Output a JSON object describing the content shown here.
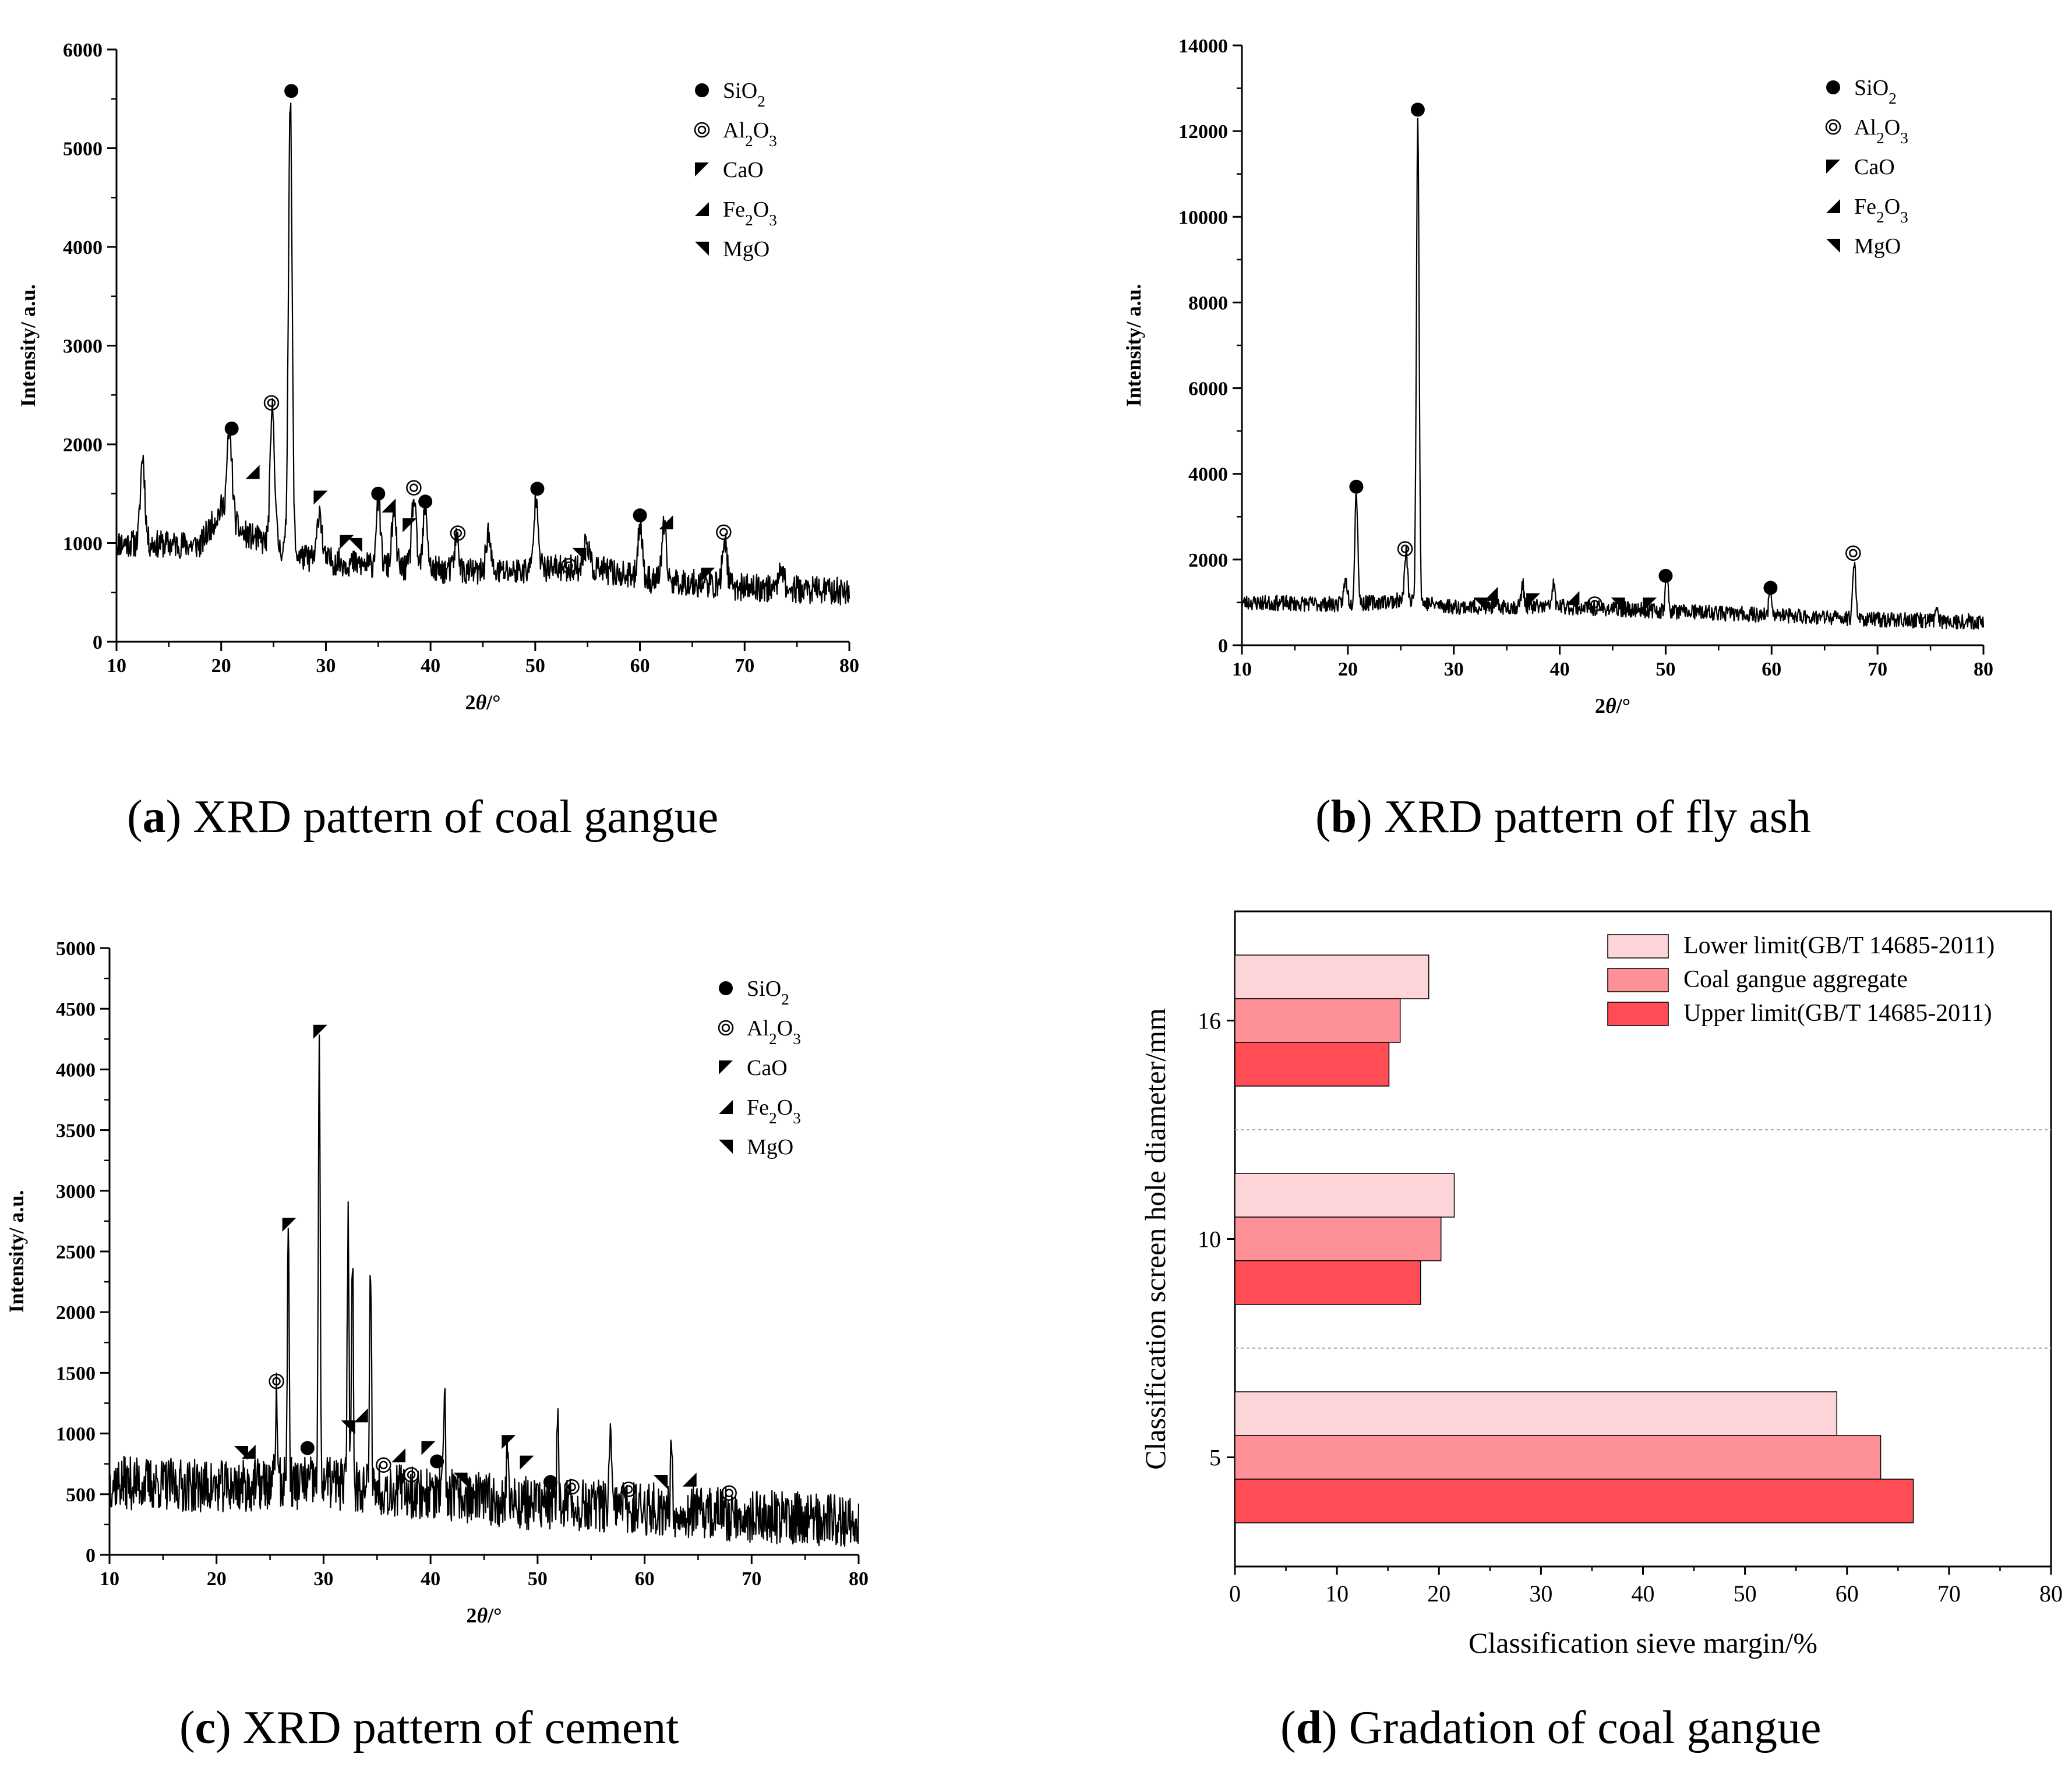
{
  "figure": {
    "captions": [
      {
        "letter": "a",
        "text": "XRD pattern of coal gangue"
      },
      {
        "letter": "b",
        "text": "XRD pattern of fly ash"
      },
      {
        "letter": "c",
        "text": "XRD pattern of cement"
      },
      {
        "letter": "d",
        "text": "Gradation of coal gangue"
      }
    ]
  },
  "chart_data": [
    {
      "type": "line",
      "panel": "a",
      "xlabel": "2θ/°",
      "ylabel": "Intensity/ a.u.",
      "xlim": [
        10,
        80
      ],
      "ylim": [
        0,
        6000
      ],
      "xticks": [
        10,
        20,
        30,
        40,
        50,
        60,
        70,
        80
      ],
      "yticks": [
        0,
        1000,
        2000,
        3000,
        4000,
        5000,
        6000
      ],
      "grid": false,
      "legend_position": "top-right",
      "legend": [
        "SiO2",
        "Al2O3",
        "CaO",
        "Fe2O3",
        "MgO"
      ],
      "baseline": [
        [
          10,
          1000
        ],
        [
          18,
          980
        ],
        [
          20,
          1350
        ],
        [
          22,
          1100
        ],
        [
          28,
          850
        ],
        [
          35,
          760
        ],
        [
          45,
          700
        ],
        [
          55,
          760
        ],
        [
          60,
          640
        ],
        [
          70,
          550
        ],
        [
          80,
          510
        ]
      ],
      "peaks": [
        {
          "x": 12.5,
          "y": 1880,
          "w": 0.3
        },
        {
          "x": 20.8,
          "y": 2100,
          "w": 0.35
        },
        {
          "x": 24.9,
          "y": 2350,
          "w": 0.3
        },
        {
          "x": 26.6,
          "y": 5500,
          "w": 0.25
        },
        {
          "x": 29.4,
          "y": 1350,
          "w": 0.3
        },
        {
          "x": 35.0,
          "y": 1450,
          "w": 0.3
        },
        {
          "x": 36.5,
          "y": 1300,
          "w": 0.3
        },
        {
          "x": 38.4,
          "y": 1450,
          "w": 0.3
        },
        {
          "x": 39.5,
          "y": 1350,
          "w": 0.3
        },
        {
          "x": 42.5,
          "y": 1050,
          "w": 0.3
        },
        {
          "x": 45.5,
          "y": 1100,
          "w": 0.3
        },
        {
          "x": 50.1,
          "y": 1500,
          "w": 0.3
        },
        {
          "x": 54.9,
          "y": 1050,
          "w": 0.3
        },
        {
          "x": 60.0,
          "y": 1200,
          "w": 0.3
        },
        {
          "x": 62.3,
          "y": 1150,
          "w": 0.3
        },
        {
          "x": 68.1,
          "y": 1050,
          "w": 0.3
        },
        {
          "x": 73.5,
          "y": 800,
          "w": 0.3
        }
      ],
      "noise": 140,
      "markers": [
        {
          "phase": "SiO2",
          "x": 21.0,
          "y": 2160
        },
        {
          "phase": "SiO2",
          "x": 26.7,
          "y": 5580
        },
        {
          "phase": "SiO2",
          "x": 35.0,
          "y": 1500
        },
        {
          "phase": "SiO2",
          "x": 39.5,
          "y": 1420
        },
        {
          "phase": "SiO2",
          "x": 50.2,
          "y": 1550
        },
        {
          "phase": "SiO2",
          "x": 60.0,
          "y": 1280
        },
        {
          "phase": "Al2O3",
          "x": 24.8,
          "y": 2420
        },
        {
          "phase": "Al2O3",
          "x": 38.4,
          "y": 1560
        },
        {
          "phase": "Al2O3",
          "x": 42.6,
          "y": 1100
        },
        {
          "phase": "Al2O3",
          "x": 53.2,
          "y": 770
        },
        {
          "phase": "Al2O3",
          "x": 68.0,
          "y": 1110
        },
        {
          "phase": "CaO",
          "x": 29.5,
          "y": 1460
        },
        {
          "phase": "CaO",
          "x": 32.0,
          "y": 1010
        },
        {
          "phase": "CaO",
          "x": 38.0,
          "y": 1180
        },
        {
          "phase": "CaO",
          "x": 66.5,
          "y": 680
        },
        {
          "phase": "Fe2O3",
          "x": 23.0,
          "y": 1720
        },
        {
          "phase": "Fe2O3",
          "x": 36.0,
          "y": 1380
        },
        {
          "phase": "Fe2O3",
          "x": 62.5,
          "y": 1210
        },
        {
          "phase": "MgO",
          "x": 32.8,
          "y": 980
        },
        {
          "phase": "MgO",
          "x": 54.2,
          "y": 880
        }
      ]
    },
    {
      "type": "line",
      "panel": "b",
      "xlabel": "2θ/°",
      "ylabel": "Intensity/ a.u.",
      "xlim": [
        10,
        80
      ],
      "ylim": [
        0,
        14000
      ],
      "xticks": [
        10,
        20,
        30,
        40,
        50,
        60,
        70,
        80
      ],
      "yticks": [
        0,
        2000,
        4000,
        6000,
        8000,
        10000,
        12000,
        14000
      ],
      "grid": false,
      "legend_position": "top-right",
      "legend": [
        "SiO2",
        "Al2O3",
        "CaO",
        "Fe2O3",
        "MgO"
      ],
      "baseline": [
        [
          10,
          1000
        ],
        [
          20,
          950
        ],
        [
          25,
          1050
        ],
        [
          30,
          900
        ],
        [
          40,
          900
        ],
        [
          50,
          800
        ],
        [
          60,
          700
        ],
        [
          70,
          600
        ],
        [
          80,
          550
        ]
      ],
      "peaks": [
        {
          "x": 19.8,
          "y": 1500,
          "w": 0.25
        },
        {
          "x": 20.8,
          "y": 3600,
          "w": 0.2
        },
        {
          "x": 25.5,
          "y": 2200,
          "w": 0.2
        },
        {
          "x": 26.6,
          "y": 12400,
          "w": 0.18
        },
        {
          "x": 36.5,
          "y": 1400,
          "w": 0.2
        },
        {
          "x": 39.4,
          "y": 1400,
          "w": 0.2
        },
        {
          "x": 50.1,
          "y": 1600,
          "w": 0.2
        },
        {
          "x": 59.9,
          "y": 1300,
          "w": 0.2
        },
        {
          "x": 67.8,
          "y": 2000,
          "w": 0.2
        },
        {
          "x": 75.6,
          "y": 850,
          "w": 0.2
        }
      ],
      "noise": 180,
      "markers": [
        {
          "phase": "SiO2",
          "x": 20.8,
          "y": 3700
        },
        {
          "phase": "SiO2",
          "x": 26.6,
          "y": 12500
        },
        {
          "phase": "SiO2",
          "x": 50.0,
          "y": 1620
        },
        {
          "phase": "SiO2",
          "x": 59.9,
          "y": 1340
        },
        {
          "phase": "Al2O3",
          "x": 25.4,
          "y": 2250
        },
        {
          "phase": "Al2O3",
          "x": 43.3,
          "y": 960
        },
        {
          "phase": "Al2O3",
          "x": 67.7,
          "y": 2150
        },
        {
          "phase": "CaO",
          "x": 37.5,
          "y": 1050
        },
        {
          "phase": "CaO",
          "x": 48.5,
          "y": 950
        },
        {
          "phase": "Fe2O3",
          "x": 33.5,
          "y": 1200
        },
        {
          "phase": "Fe2O3",
          "x": 41.2,
          "y": 1100
        },
        {
          "phase": "MgO",
          "x": 32.5,
          "y": 950
        },
        {
          "phase": "MgO",
          "x": 45.5,
          "y": 950
        }
      ]
    },
    {
      "type": "line",
      "panel": "c",
      "xlabel": "2θ/°",
      "ylabel": "Intensity/ a.u.",
      "xlim": [
        10,
        80
      ],
      "ylim": [
        0,
        5000
      ],
      "xticks": [
        10,
        20,
        30,
        40,
        50,
        60,
        70,
        80
      ],
      "yticks": [
        0,
        500,
        1000,
        1500,
        2000,
        2500,
        3000,
        3500,
        4000,
        4500,
        5000
      ],
      "grid": false,
      "legend_position": "top-right",
      "legend": [
        "SiO2",
        "Al2O3",
        "CaO",
        "Fe2O3",
        "MgO"
      ],
      "baseline": [
        [
          10,
          600
        ],
        [
          20,
          560
        ],
        [
          30,
          600
        ],
        [
          40,
          500
        ],
        [
          50,
          420
        ],
        [
          60,
          380
        ],
        [
          70,
          320
        ],
        [
          80,
          280
        ]
      ],
      "peaks": [
        {
          "x": 25.6,
          "y": 1300,
          "w": 0.15
        },
        {
          "x": 26.7,
          "y": 2700,
          "w": 0.12
        },
        {
          "x": 29.6,
          "y": 4200,
          "w": 0.12
        },
        {
          "x": 32.3,
          "y": 2800,
          "w": 0.12
        },
        {
          "x": 32.7,
          "y": 2500,
          "w": 0.12
        },
        {
          "x": 34.4,
          "y": 2450,
          "w": 0.12
        },
        {
          "x": 41.3,
          "y": 1300,
          "w": 0.12
        },
        {
          "x": 47.2,
          "y": 950,
          "w": 0.12
        },
        {
          "x": 51.9,
          "y": 1200,
          "w": 0.12
        },
        {
          "x": 56.8,
          "y": 1050,
          "w": 0.12
        },
        {
          "x": 62.5,
          "y": 900,
          "w": 0.12
        }
      ],
      "noise": 220,
      "markers": [
        {
          "phase": "SiO2",
          "x": 28.5,
          "y": 880
        },
        {
          "phase": "SiO2",
          "x": 40.6,
          "y": 770
        },
        {
          "phase": "SiO2",
          "x": 51.2,
          "y": 600
        },
        {
          "phase": "Al2O3",
          "x": 25.6,
          "y": 1430
        },
        {
          "phase": "Al2O3",
          "x": 35.6,
          "y": 740
        },
        {
          "phase": "Al2O3",
          "x": 38.2,
          "y": 660
        },
        {
          "phase": "Al2O3",
          "x": 53.2,
          "y": 560
        },
        {
          "phase": "Al2O3",
          "x": 58.5,
          "y": 540
        },
        {
          "phase": "Al2O3",
          "x": 67.9,
          "y": 510
        },
        {
          "phase": "CaO",
          "x": 26.8,
          "y": 2720
        },
        {
          "phase": "CaO",
          "x": 29.7,
          "y": 4310
        },
        {
          "phase": "CaO",
          "x": 39.8,
          "y": 880
        },
        {
          "phase": "CaO",
          "x": 47.3,
          "y": 930
        },
        {
          "phase": "CaO",
          "x": 49.0,
          "y": 760
        },
        {
          "phase": "Fe2O3",
          "x": 23.0,
          "y": 850
        },
        {
          "phase": "Fe2O3",
          "x": 33.5,
          "y": 1150
        },
        {
          "phase": "Fe2O3",
          "x": 37.0,
          "y": 820
        },
        {
          "phase": "Fe2O3",
          "x": 64.2,
          "y": 620
        },
        {
          "phase": "MgO",
          "x": 22.3,
          "y": 840
        },
        {
          "phase": "MgO",
          "x": 32.3,
          "y": 1050
        },
        {
          "phase": "MgO",
          "x": 42.8,
          "y": 620
        },
        {
          "phase": "MgO",
          "x": 61.5,
          "y": 600
        }
      ]
    },
    {
      "type": "bar",
      "panel": "d",
      "orientation": "horizontal",
      "xlabel": "Classification sieve margin/%",
      "ylabel": "Classification screen hole diameter/mm",
      "categories": [
        "5",
        "10",
        "16"
      ],
      "xlim": [
        0,
        80
      ],
      "xticks": [
        0,
        10,
        20,
        30,
        40,
        50,
        60,
        70,
        80
      ],
      "grid": false,
      "legend_position": "top-right",
      "series": [
        {
          "name": "Lower limit(GB/T 14685-2011)",
          "values": [
            59,
            21.5,
            19
          ],
          "color": "#fdd5d8"
        },
        {
          "name": "Coal gangue aggregate",
          "values": [
            63.3,
            20.2,
            16.2
          ],
          "color": "#fe9097"
        },
        {
          "name": "Upper limit(GB/T 14685-2011)",
          "values": [
            66.5,
            18.2,
            15.1
          ],
          "color": "#ff4c55"
        }
      ]
    }
  ]
}
